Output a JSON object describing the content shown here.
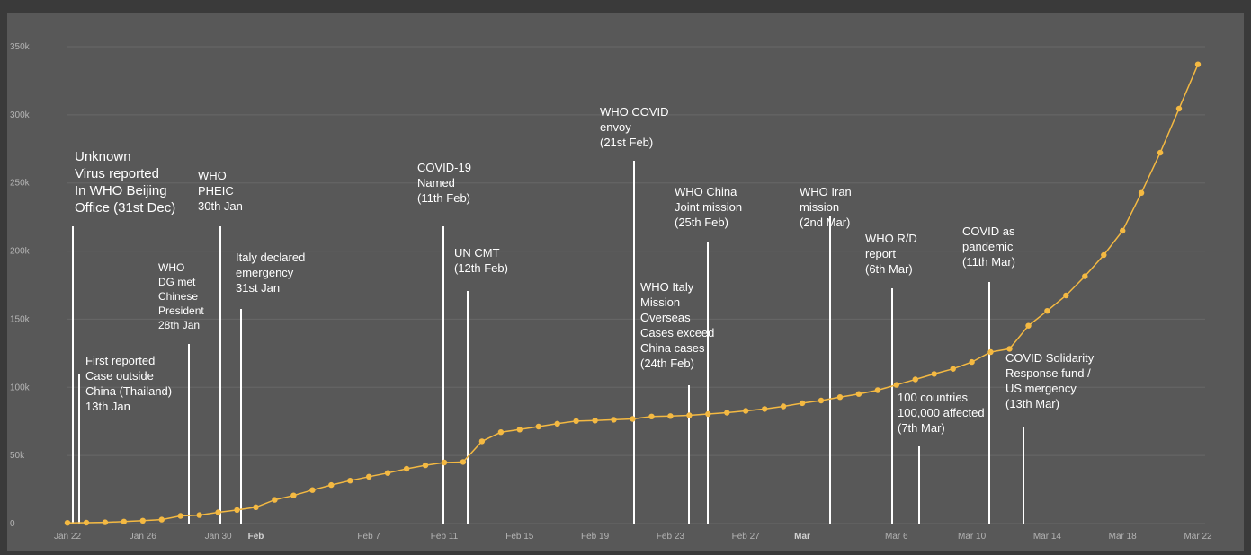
{
  "chart_data": {
    "type": "line",
    "title": "",
    "xlabel": "",
    "ylabel": "",
    "ylim": [
      0,
      350000
    ],
    "y_ticks": [
      "0",
      "50k",
      "100k",
      "150k",
      "200k",
      "250k",
      "300k",
      "350k"
    ],
    "x_ticks": [
      {
        "day": 0,
        "label": "Jan 22"
      },
      {
        "day": 4,
        "label": "Jan 26"
      },
      {
        "day": 8,
        "label": "Jan 30"
      },
      {
        "day": 10,
        "label": "Feb",
        "bold": true
      },
      {
        "day": 16,
        "label": "Feb 7"
      },
      {
        "day": 20,
        "label": "Feb 11"
      },
      {
        "day": 24,
        "label": "Feb 15"
      },
      {
        "day": 28,
        "label": "Feb 19"
      },
      {
        "day": 32,
        "label": "Feb 23"
      },
      {
        "day": 36,
        "label": "Feb 27"
      },
      {
        "day": 39,
        "label": "Mar",
        "bold": true
      },
      {
        "day": 44,
        "label": "Mar 6"
      },
      {
        "day": 48,
        "label": "Mar 10"
      },
      {
        "day": 52,
        "label": "Mar 14"
      },
      {
        "day": 56,
        "label": "Mar 18"
      },
      {
        "day": 60,
        "label": "Mar 22"
      }
    ],
    "series": [
      {
        "name": "",
        "color": "#f4b942",
        "x": [
          "Jan 22",
          "Jan 23",
          "Jan 24",
          "Jan 25",
          "Jan 26",
          "Jan 27",
          "Jan 28",
          "Jan 29",
          "Jan 30",
          "Jan 31",
          "Feb 1",
          "Feb 2",
          "Feb 3",
          "Feb 4",
          "Feb 5",
          "Feb 6",
          "Feb 7",
          "Feb 8",
          "Feb 9",
          "Feb 10",
          "Feb 11",
          "Feb 12",
          "Feb 13",
          "Feb 14",
          "Feb 15",
          "Feb 16",
          "Feb 17",
          "Feb 18",
          "Feb 19",
          "Feb 20",
          "Feb 21",
          "Feb 22",
          "Feb 23",
          "Feb 24",
          "Feb 25",
          "Feb 26",
          "Feb 27",
          "Feb 28",
          "Feb 29",
          "Mar 1",
          "Mar 2",
          "Mar 3",
          "Mar 4",
          "Mar 5",
          "Mar 6",
          "Mar 7",
          "Mar 8",
          "Mar 9",
          "Mar 10",
          "Mar 11",
          "Mar 12",
          "Mar 13",
          "Mar 14",
          "Mar 15",
          "Mar 16",
          "Mar 17",
          "Mar 18",
          "Mar 19",
          "Mar 20",
          "Mar 21",
          "Mar 22"
        ],
        "values": [
          555,
          650,
          940,
          1440,
          2120,
          2930,
          5580,
          6170,
          8240,
          9930,
          12000,
          17400,
          20600,
          24600,
          28300,
          31500,
          34400,
          37100,
          40200,
          42800,
          44800,
          45200,
          60400,
          67100,
          69000,
          71200,
          73300,
          75200,
          75600,
          76200,
          76800,
          78600,
          78900,
          79400,
          80400,
          81400,
          82700,
          84100,
          86000,
          88400,
          90300,
          92800,
          95100,
          97900,
          101800,
          105800,
          109800,
          113600,
          118600,
          125900,
          128300,
          145200,
          156100,
          167400,
          181500,
          197100,
          214900,
          242700,
          272200,
          304500,
          337000
        ]
      }
    ],
    "annotations": [
      {
        "id": "unknown-virus",
        "lines": [
          "Unknown",
          "Virus reported",
          "In WHO Beijing",
          "Office (31st Dec)"
        ],
        "size": "big"
      },
      {
        "id": "first-case",
        "lines": [
          "First reported",
          "Case outside",
          "China (Thailand)",
          "13th Jan"
        ],
        "size": "normal"
      },
      {
        "id": "who-dg",
        "lines": [
          "WHO",
          "DG met",
          "Chinese",
          "President",
          "28th Jan"
        ],
        "size": "small"
      },
      {
        "id": "who-pheic",
        "lines": [
          "WHO",
          "PHEIC",
          "30th Jan"
        ],
        "size": "normal"
      },
      {
        "id": "italy-emergency",
        "lines": [
          "Italy declared",
          "emergency",
          "31st Jan"
        ],
        "size": "normal"
      },
      {
        "id": "covid-named",
        "lines": [
          "COVID-19",
          "Named",
          "(11th Feb)"
        ],
        "size": "normal"
      },
      {
        "id": "un-cmt",
        "lines": [
          "UN CMT",
          "(12th Feb)"
        ],
        "size": "normal"
      },
      {
        "id": "who-envoy",
        "lines": [
          "WHO COVID",
          "envoy",
          "(21st Feb)"
        ],
        "size": "normal"
      },
      {
        "id": "who-italy",
        "lines": [
          "WHO Italy",
          "Mission",
          "Overseas",
          "Cases exceed",
          "China cases",
          "(24th Feb)"
        ],
        "size": "normal"
      },
      {
        "id": "who-china",
        "lines": [
          "WHO China",
          "Joint mission",
          "(25th Feb)"
        ],
        "size": "normal"
      },
      {
        "id": "who-iran",
        "lines": [
          "WHO Iran",
          "mission",
          "(2nd Mar)"
        ],
        "size": "normal"
      },
      {
        "id": "who-rd",
        "lines": [
          "WHO R/D",
          "report",
          "(6th Mar)"
        ],
        "size": "normal"
      },
      {
        "id": "hundred-countries",
        "lines": [
          "100 countries",
          "100,000 affected",
          "(7th Mar)"
        ],
        "size": "normal"
      },
      {
        "id": "pandemic",
        "lines": [
          "COVID as",
          "pandemic",
          "(11th Mar)"
        ],
        "size": "normal"
      },
      {
        "id": "solidarity",
        "lines": [
          "COVID Solidarity",
          "Response fund /",
          "US mergency",
          "(13th Mar)"
        ],
        "size": "normal"
      }
    ]
  }
}
